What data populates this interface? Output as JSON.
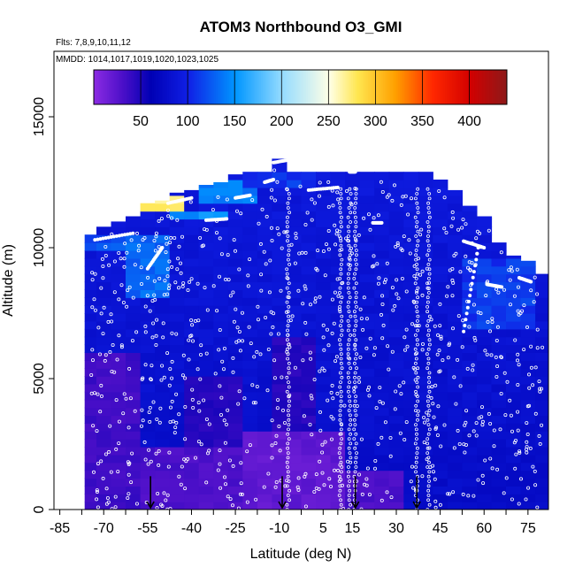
{
  "chart_data": {
    "type": "heatmap",
    "title": "ATOM3 Northbound O3_GMI",
    "subtitle_flights": "Flts: 7,8,9,10,11,12",
    "subtitle_dates": "MMDD: 1014,1017,1019,1020,1023,1025",
    "xlabel": "Latitude (deg N)",
    "ylabel": "Altitude (m)",
    "xlim": [
      -87,
      82
    ],
    "ylim": [
      0,
      17500
    ],
    "x_ticks": [
      -85,
      -70,
      -55,
      -40,
      -25,
      -10,
      5,
      15,
      30,
      45,
      60,
      75
    ],
    "x_tick_labels": [
      "-85",
      "-70",
      "-55",
      "-40",
      "-25",
      "-10",
      "5",
      "15",
      "30",
      "45",
      "60",
      "75"
    ],
    "y_ticks": [
      0,
      5000,
      10000,
      15000
    ],
    "y_tick_labels": [
      "0",
      "5000",
      "10000",
      "15000"
    ],
    "colorbar": {
      "min": 0,
      "max": 440,
      "ticks": [
        50,
        100,
        150,
        200,
        250,
        300,
        350,
        400
      ],
      "tick_labels": [
        "50",
        "100",
        "150",
        "200",
        "250",
        "300",
        "350",
        "400"
      ],
      "stops": [
        {
          "v": 0,
          "c": "#8a2be2"
        },
        {
          "v": 30,
          "c": "#4b0fc8"
        },
        {
          "v": 60,
          "c": "#0000b4"
        },
        {
          "v": 100,
          "c": "#1020e6"
        },
        {
          "v": 150,
          "c": "#0096ff"
        },
        {
          "v": 200,
          "c": "#96dcff"
        },
        {
          "v": 250,
          "c": "#ffffe6"
        },
        {
          "v": 280,
          "c": "#ffe650"
        },
        {
          "v": 320,
          "c": "#ffa000"
        },
        {
          "v": 360,
          "c": "#ff2800"
        },
        {
          "v": 400,
          "c": "#d20000"
        },
        {
          "v": 440,
          "c": "#8b1a1a"
        }
      ]
    },
    "field_extent": {
      "columns": [
        {
          "lat": -74,
          "top": 10500
        },
        {
          "lat": -70,
          "top": 10800
        },
        {
          "lat": -65,
          "top": 11000
        },
        {
          "lat": -60,
          "top": 11200
        },
        {
          "lat": -55,
          "top": 11700
        },
        {
          "lat": -50,
          "top": 11800
        },
        {
          "lat": -45,
          "top": 12100
        },
        {
          "lat": -40,
          "top": 12200
        },
        {
          "lat": -35,
          "top": 12400
        },
        {
          "lat": -30,
          "top": 12500
        },
        {
          "lat": -25,
          "top": 12800
        },
        {
          "lat": -20,
          "top": 12900
        },
        {
          "lat": -15,
          "top": 12900
        },
        {
          "lat": -10,
          "top": 13400
        },
        {
          "lat": -5,
          "top": 12900
        },
        {
          "lat": 0,
          "top": 12900
        },
        {
          "lat": 5,
          "top": 12900
        },
        {
          "lat": 10,
          "top": 12900
        },
        {
          "lat": 15,
          "top": 12900
        },
        {
          "lat": 20,
          "top": 12900
        },
        {
          "lat": 25,
          "top": 12900
        },
        {
          "lat": 30,
          "top": 12900
        },
        {
          "lat": 35,
          "top": 12900
        },
        {
          "lat": 40,
          "top": 12900
        },
        {
          "lat": 45,
          "top": 12600
        },
        {
          "lat": 50,
          "top": 12200
        },
        {
          "lat": 55,
          "top": 11600
        },
        {
          "lat": 60,
          "top": 11200
        },
        {
          "lat": 65,
          "top": 10200
        },
        {
          "lat": 70,
          "top": 9700
        },
        {
          "lat": 75,
          "top": 9500
        },
        {
          "lat": 80,
          "top": 9000
        }
      ]
    },
    "high_ozone_patches": [
      {
        "lat0": -56,
        "lat1": -42,
        "alt0": 11400,
        "alt1": 11900,
        "o3": 270
      },
      {
        "lat0": -45,
        "lat1": -25,
        "alt0": 11000,
        "alt1": 11500,
        "o3": 150
      },
      {
        "lat0": -35,
        "lat1": -15,
        "alt0": 11800,
        "alt1": 12500,
        "o3": 140
      },
      {
        "lat0": -60,
        "lat1": -48,
        "alt0": 8000,
        "alt1": 10500,
        "o3": 130
      },
      {
        "lat0": -75,
        "lat1": -60,
        "alt0": 9800,
        "alt1": 10500,
        "o3": 120
      },
      {
        "lat0": -20,
        "lat1": 5,
        "alt0": 12300,
        "alt1": 12900,
        "o3": 110
      },
      {
        "lat0": 55,
        "lat1": 80,
        "alt0": 7000,
        "alt1": 9500,
        "o3": 110
      }
    ],
    "low_ozone_patches": [
      {
        "lat0": -74,
        "lat1": -55,
        "alt0": 0,
        "alt1": 6000,
        "o3": 35
      },
      {
        "lat0": -55,
        "lat1": -20,
        "alt0": 0,
        "alt1": 2500,
        "o3": 30
      },
      {
        "lat0": -20,
        "lat1": 15,
        "alt0": 0,
        "alt1": 3000,
        "o3": 20
      },
      {
        "lat0": 15,
        "lat1": 35,
        "alt0": 0,
        "alt1": 1500,
        "o3": 30
      },
      {
        "lat0": -10,
        "lat1": 5,
        "alt0": 3000,
        "alt1": 6500,
        "o3": 45
      },
      {
        "lat0": -40,
        "lat1": -20,
        "alt0": 2500,
        "alt1": 5000,
        "o3": 45
      }
    ],
    "arrows": [
      {
        "lat": -54,
        "alt": 800
      },
      {
        "lat": -9,
        "alt": 800
      },
      {
        "lat": 16,
        "alt": 800
      },
      {
        "lat": 37,
        "alt": 800
      }
    ]
  }
}
